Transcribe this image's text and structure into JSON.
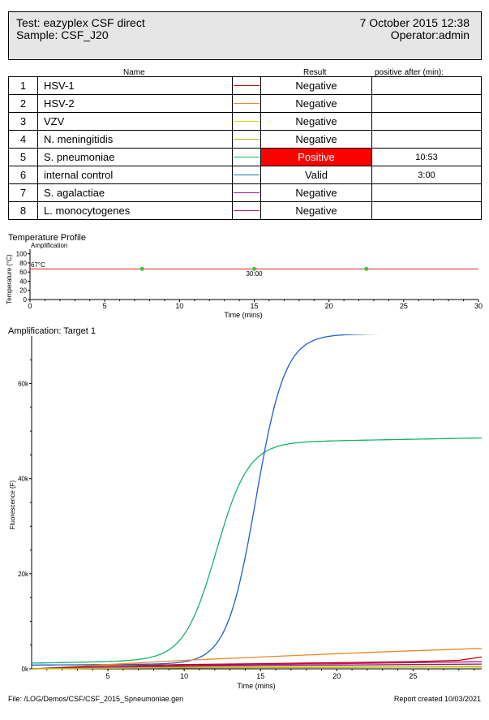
{
  "header": {
    "test": "Test: eazyplex CSF direct",
    "sample": "Sample: CSF_J20",
    "date": "7 October 2015 12:38",
    "operator": "Operator:admin"
  },
  "table": {
    "col_name": "Name",
    "col_result": "Result",
    "col_positive_after": "positive after (min):",
    "rows": [
      {
        "num": "1",
        "name": "HSV-1",
        "color": "#c00000",
        "result": "Negative",
        "after": ""
      },
      {
        "num": "2",
        "name": "HSV-2",
        "color": "#e88a2a",
        "result": "Negative",
        "after": ""
      },
      {
        "num": "3",
        "name": "VZV",
        "color": "#e6d800",
        "result": "Negative",
        "after": ""
      },
      {
        "num": "4",
        "name": "N. meningitidis",
        "color": "#b5b51a",
        "result": "Negative",
        "after": ""
      },
      {
        "num": "5",
        "name": "S. pneumoniae",
        "color": "#16b36a",
        "result": "Positive",
        "after": "10:53",
        "positive": true
      },
      {
        "num": "6",
        "name": "internal control",
        "color": "#0e7fa0",
        "result": "Valid",
        "after": "3:00"
      },
      {
        "num": "7",
        "name": "S. agalactiae",
        "color": "#8a1a8a",
        "result": "Negative",
        "after": ""
      },
      {
        "num": "8",
        "name": "L. monocytogenes",
        "color": "#c0107a",
        "result": "Negative",
        "after": ""
      }
    ]
  },
  "temp_profile": {
    "title": "Temperature Profile",
    "subtitle": "Amplification",
    "ylabel": "Temperature (°C)",
    "xlabel": "Time (mins)",
    "setpoint_label": "67°C",
    "duration_label": "30:00",
    "y_ticks": [
      "100",
      "80",
      "60",
      "40",
      "20",
      "0"
    ],
    "x_ticks": [
      "0",
      "5",
      "10",
      "15",
      "20",
      "25",
      "30"
    ]
  },
  "amp_chart": {
    "title": "Amplification: Target 1",
    "ylabel": "Fluorescence (F)",
    "xlabel": "Time (mins)",
    "y_ticks": [
      "0k",
      "20k",
      "40k",
      "60k"
    ],
    "x_ticks": [
      "5",
      "10",
      "15",
      "20",
      "25"
    ]
  },
  "footer": {
    "file": "File: /LOG/Demos/CSF/CSF_2015_Spneumoniae.gen",
    "created": "Report created 10/03/2021"
  },
  "chart_data": [
    {
      "type": "line",
      "title": "Temperature Profile",
      "xlabel": "Time (mins)",
      "ylabel": "Temperature (°C)",
      "xlim": [
        0,
        30
      ],
      "ylim": [
        0,
        110
      ],
      "series": [
        {
          "name": "Amplification",
          "color": "#e02020",
          "x": [
            0,
            30
          ],
          "y": [
            67,
            67
          ]
        }
      ],
      "markers": [
        {
          "x": 7.5,
          "y": 67
        },
        {
          "x": 15,
          "y": 67
        },
        {
          "x": 22.5,
          "y": 67
        }
      ]
    },
    {
      "type": "line",
      "title": "Amplification: Target 1",
      "xlabel": "Time (mins)",
      "ylabel": "Fluorescence (F)",
      "xlim": [
        0,
        29.5
      ],
      "ylim": [
        0,
        70000
      ],
      "series": [
        {
          "name": "S. pneumoniae",
          "color": "#16b36a",
          "kind": "sigmoid",
          "base": 1200,
          "slope0": 60,
          "top": 46800,
          "mid": 12.1,
          "k": 0.95
        },
        {
          "name": "internal control",
          "color": "#1e5fd0",
          "kind": "sigmoid",
          "base": 800,
          "slope0": 20,
          "top": 70000,
          "mid": 14.7,
          "k": 1.05
        },
        {
          "name": "HSV-2",
          "color": "#e88a2a",
          "kind": "line",
          "x": [
            0,
            5,
            10,
            15,
            20,
            25,
            29.5
          ],
          "y": [
            0,
            900,
            1800,
            2500,
            3200,
            3800,
            4300
          ]
        },
        {
          "name": "HSV-1",
          "color": "#c00000",
          "kind": "line",
          "x": [
            0,
            5,
            10,
            15,
            20,
            25,
            28,
            29.5
          ],
          "y": [
            0,
            600,
            900,
            1100,
            1300,
            1500,
            1800,
            2500
          ]
        },
        {
          "name": "L. monocytogenes",
          "color": "#c0107a",
          "kind": "line",
          "x": [
            0,
            5,
            10,
            15,
            20,
            25,
            29.5
          ],
          "y": [
            0,
            300,
            700,
            900,
            1100,
            1300,
            1500
          ]
        },
        {
          "name": "S. agalactiae",
          "color": "#8a1a8a",
          "kind": "line",
          "x": [
            0,
            5,
            10,
            15,
            20,
            25,
            29.5
          ],
          "y": [
            0,
            250,
            550,
            700,
            800,
            900,
            1000
          ]
        },
        {
          "name": "VZV",
          "color": "#e6d800",
          "kind": "line",
          "x": [
            0,
            5,
            10,
            15,
            20,
            25,
            29.5
          ],
          "y": [
            0,
            150,
            300,
            400,
            450,
            500,
            550
          ]
        },
        {
          "name": "N. meningitidis",
          "color": "#b5b51a",
          "kind": "line",
          "x": [
            0,
            5,
            10,
            15,
            20,
            25,
            29.5
          ],
          "y": [
            0,
            100,
            200,
            250,
            300,
            350,
            400
          ]
        }
      ]
    }
  ]
}
